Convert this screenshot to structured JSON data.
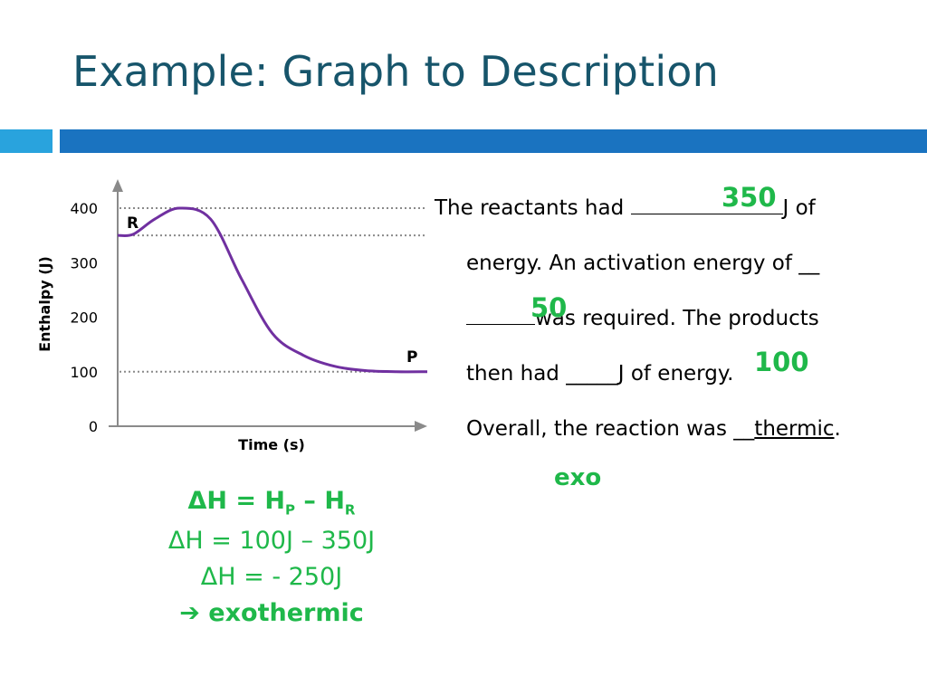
{
  "slide": {
    "title": "Example: Graph to Description"
  },
  "chart_data": {
    "type": "line",
    "ylabel": "Enthalpy (J)",
    "xlabel": "Time (s)",
    "ylim": [
      0,
      400
    ],
    "yticks": [
      "0",
      "100",
      "200",
      "300",
      "400"
    ],
    "reactant_label": "R",
    "product_label": "P",
    "reference_lines": [
      400,
      350,
      100
    ],
    "series": [
      {
        "x": [
          0,
          0.05,
          0.12,
          0.2,
          0.3,
          0.4,
          0.5,
          0.6,
          0.7,
          0.8,
          0.9,
          1.0
        ],
        "values": [
          350,
          352,
          380,
          400,
          380,
          270,
          170,
          130,
          110,
          102,
          100,
          100
        ]
      }
    ],
    "line_color": "#7030a0",
    "grid": false
  },
  "description": {
    "l1_a": "The reactants had ",
    "l1_b": "J of",
    "l2": "energy.  An activation energy of __",
    "l3_a": "",
    "l3_b": "was required.  The products",
    "l4_a": "then had _____",
    "l4_b": "J of energy.",
    "l5_a": "Overall, the reaction was __",
    "l5_b": "thermic",
    "l5_c": ".",
    "answer_reactants": "350",
    "answer_activation": "50",
    "answer_products": "100",
    "answer_type": "exo"
  },
  "equations": {
    "e1_a": "ΔH = H",
    "e1_sub1": "P",
    "e1_b": " – H",
    "e1_sub2": "R",
    "e2": "ΔH = 100J – 350J",
    "e3": "ΔH = - 250J",
    "e4": "➔ exothermic"
  },
  "colors": {
    "title": "#17556b",
    "answer": "#1fb84a",
    "curve": "#7030a0"
  }
}
